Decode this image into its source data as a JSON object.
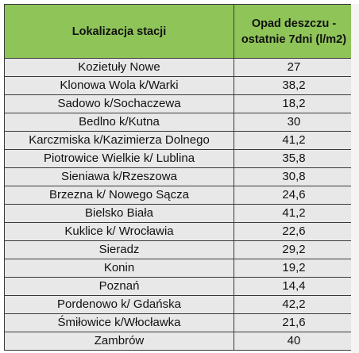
{
  "table": {
    "headers": {
      "location": "Lokalizacja stacji",
      "rainfall": "Opad deszczu - ostatnie  7dni (l/m2)"
    },
    "rows": [
      {
        "location": "Kozietuły Nowe",
        "value": "27"
      },
      {
        "location": "Klonowa Wola k/Warki",
        "value": "38,2"
      },
      {
        "location": "Sadowo k/Sochaczewa",
        "value": "18,2"
      },
      {
        "location": "Bedlno k/Kutna",
        "value": "30"
      },
      {
        "location": "Karczmiska k/Kazimierza Dolnego",
        "value": "41,2"
      },
      {
        "location": "Piotrowice Wielkie k/ Lublina",
        "value": "35,8"
      },
      {
        "location": "Sieniawa k/Rzeszowa",
        "value": "30,8"
      },
      {
        "location": "Brzezna k/ Nowego Sącza",
        "value": "24,6"
      },
      {
        "location": "Bielsko Biała",
        "value": "41,2"
      },
      {
        "location": "Kuklice k/ Wrocławia",
        "value": "22,6"
      },
      {
        "location": "Sieradz",
        "value": "29,2"
      },
      {
        "location": "Konin",
        "value": "19,2"
      },
      {
        "location": "Poznań",
        "value": "14,4"
      },
      {
        "location": "Pordenowo k/ Gdańska",
        "value": "42,2"
      },
      {
        "location": "Śmiłowice k/Włocławka",
        "value": "21,6"
      },
      {
        "location": "Zambrów",
        "value": "40"
      }
    ]
  },
  "colors": {
    "header_bg": "#8fc458",
    "cell_bg": "#e8e8e8",
    "border": "#3a3a3a"
  }
}
